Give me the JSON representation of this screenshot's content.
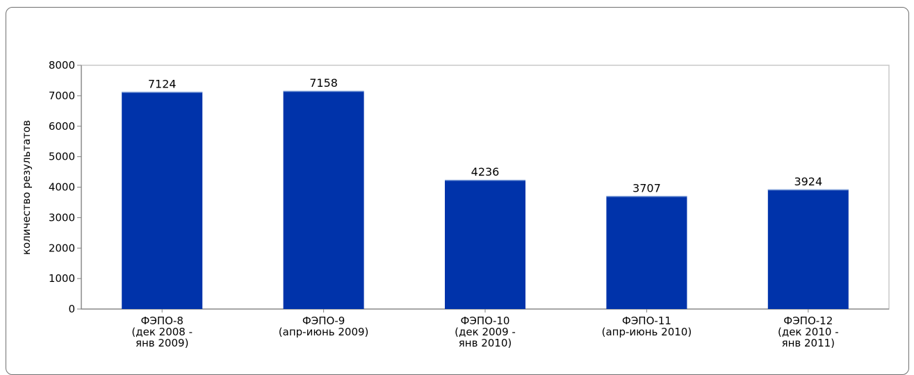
{
  "chart_data": {
    "type": "bar",
    "categories": [
      [
        "ФЭПО-8",
        "(дек 2008 -",
        "янв 2009)"
      ],
      [
        "ФЭПО-9",
        "(апр-июнь 2009)"
      ],
      [
        "ФЭПО-10",
        "(дек 2009 -",
        "янв 2010)"
      ],
      [
        "ФЭПО-11",
        "(апр-июнь 2010)"
      ],
      [
        "ФЭПО-12",
        "(дек 2010 -",
        "янв 2011)"
      ]
    ],
    "values": [
      7124,
      7158,
      4236,
      3707,
      3924
    ],
    "ylabel": "количество результатов",
    "ylim": [
      0,
      8000
    ],
    "yticks": [
      0,
      1000,
      2000,
      3000,
      4000,
      5000,
      6000,
      7000,
      8000
    ],
    "bar_color": "#0033aa",
    "grid": false,
    "legend": "none"
  }
}
